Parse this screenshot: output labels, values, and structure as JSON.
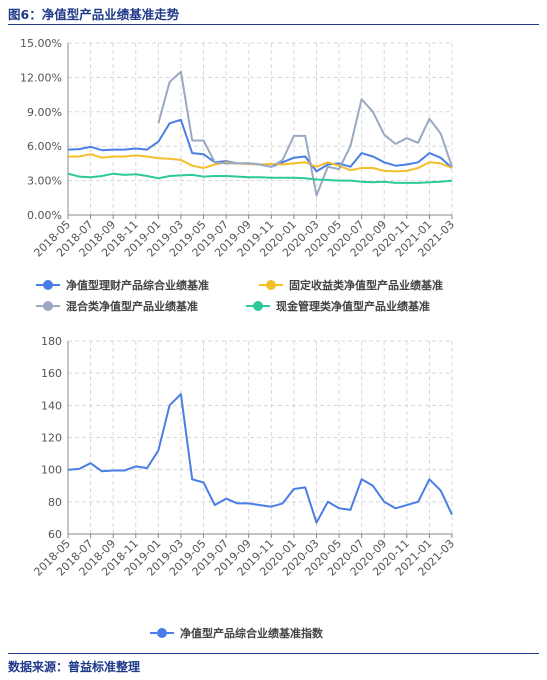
{
  "header": {
    "title": "图6：净值型产品业绩基准走势"
  },
  "footer": {
    "source": "数据来源：普益标准整理"
  },
  "colors": {
    "blue": "#4a7ee6",
    "yellow": "#f5bf2a",
    "gray": "#9aa8c1",
    "green": "#2ec99a",
    "axis": "#888888",
    "grid": "#d8d8d8"
  },
  "chart_data": [
    {
      "type": "line",
      "x": [
        "2018-05",
        "2018-06",
        "2018-07",
        "2018-08",
        "2018-09",
        "2018-10",
        "2018-11",
        "2018-12",
        "2019-01",
        "2019-02",
        "2019-03",
        "2019-04",
        "2019-05",
        "2019-06",
        "2019-07",
        "2019-08",
        "2019-09",
        "2019-10",
        "2019-11",
        "2019-12",
        "2020-01",
        "2020-02",
        "2020-03",
        "2020-04",
        "2020-05",
        "2020-06",
        "2020-07",
        "2020-08",
        "2020-09",
        "2020-10",
        "2020-11",
        "2020-12",
        "2021-01",
        "2021-02",
        "2021-03"
      ],
      "x_tick_labels": [
        "2018-05",
        "2018-07",
        "2018-09",
        "2018-11",
        "2019-01",
        "2019-03",
        "2019-05",
        "2019-07",
        "2019-09",
        "2019-11",
        "2020-01",
        "2020-03",
        "2020-05",
        "2020-07",
        "2020-09",
        "2020-11",
        "2021-01",
        "2021-03"
      ],
      "ylim": [
        0,
        15
      ],
      "y_ticks": [
        "0.00%",
        "3.00%",
        "6.00%",
        "9.00%",
        "12.00%",
        "15.00%"
      ],
      "y_tick_values": [
        0,
        3,
        6,
        9,
        12,
        15
      ],
      "grid": true,
      "legend_position": "bottom",
      "series": [
        {
          "name": "净值型理财产品综合业绩基准",
          "color": "#4a7ee6",
          "values": [
            5.7,
            5.75,
            5.95,
            5.65,
            5.7,
            5.7,
            5.8,
            5.7,
            6.4,
            8.0,
            8.3,
            5.4,
            5.3,
            4.6,
            4.7,
            4.5,
            4.5,
            4.4,
            4.2,
            4.6,
            5.0,
            5.1,
            3.8,
            4.4,
            4.5,
            4.2,
            5.4,
            5.1,
            4.6,
            4.3,
            4.4,
            4.6,
            5.4,
            5.0,
            4.1
          ]
        },
        {
          "name": "固定收益类净值型产品业绩基准",
          "color": "#f5bf2a",
          "values": [
            5.1,
            5.1,
            5.3,
            5.0,
            5.1,
            5.1,
            5.2,
            5.1,
            4.95,
            4.9,
            4.8,
            4.3,
            4.1,
            4.4,
            4.6,
            4.5,
            4.45,
            4.4,
            4.45,
            4.4,
            4.5,
            4.6,
            4.2,
            4.6,
            4.3,
            3.9,
            4.1,
            4.1,
            3.85,
            3.8,
            3.85,
            4.1,
            4.6,
            4.5,
            4.1
          ]
        },
        {
          "name": "混合类净值型产品业绩基准",
          "color": "#9aa8c1",
          "values": [
            null,
            null,
            null,
            null,
            null,
            null,
            null,
            null,
            8.0,
            11.6,
            12.5,
            6.5,
            6.5,
            4.6,
            4.5,
            4.5,
            4.5,
            4.4,
            4.2,
            4.8,
            6.9,
            6.9,
            1.7,
            4.2,
            4.0,
            6.0,
            10.1,
            9.0,
            7.0,
            6.2,
            6.7,
            6.3,
            8.4,
            7.1,
            4.2
          ]
        },
        {
          "name": "现金管理类净值型产品业绩基准",
          "color": "#2ec99a",
          "values": [
            3.6,
            3.35,
            3.3,
            3.4,
            3.6,
            3.5,
            3.55,
            3.4,
            3.2,
            3.4,
            3.45,
            3.5,
            3.35,
            3.4,
            3.4,
            3.35,
            3.3,
            3.3,
            3.25,
            3.25,
            3.25,
            3.2,
            3.1,
            3.05,
            3.0,
            3.0,
            2.9,
            2.85,
            2.9,
            2.8,
            2.8,
            2.8,
            2.85,
            2.9,
            3.0
          ]
        }
      ]
    },
    {
      "type": "line",
      "x": [
        "2018-05",
        "2018-06",
        "2018-07",
        "2018-08",
        "2018-09",
        "2018-10",
        "2018-11",
        "2018-12",
        "2019-01",
        "2019-02",
        "2019-03",
        "2019-04",
        "2019-05",
        "2019-06",
        "2019-07",
        "2019-08",
        "2019-09",
        "2019-10",
        "2019-11",
        "2019-12",
        "2020-01",
        "2020-02",
        "2020-03",
        "2020-04",
        "2020-05",
        "2020-06",
        "2020-07",
        "2020-08",
        "2020-09",
        "2020-10",
        "2020-11",
        "2020-12",
        "2021-01",
        "2021-02",
        "2021-03"
      ],
      "x_tick_labels": [
        "2018-05",
        "2018-07",
        "2018-09",
        "2018-11",
        "2019-01",
        "2019-03",
        "2019-05",
        "2019-07",
        "2019-09",
        "2019-11",
        "2020-01",
        "2020-03",
        "2020-05",
        "2020-07",
        "2020-09",
        "2020-11",
        "2021-01",
        "2021-03"
      ],
      "ylim": [
        60,
        180
      ],
      "y_ticks": [
        "60",
        "80",
        "100",
        "120",
        "140",
        "160",
        "180"
      ],
      "y_tick_values": [
        60,
        80,
        100,
        120,
        140,
        160,
        180
      ],
      "grid": true,
      "legend_position": "bottom",
      "series": [
        {
          "name": "净值型产品综合业绩基准指数",
          "color": "#4a7ee6",
          "values": [
            100,
            100.5,
            104,
            99,
            99.5,
            99.5,
            102,
            101,
            112,
            140,
            147,
            94,
            92,
            78,
            82,
            79,
            79,
            78,
            77,
            79,
            88,
            89,
            67,
            80,
            76,
            75,
            94,
            90,
            80,
            76,
            78,
            80,
            94,
            87,
            72
          ]
        }
      ]
    }
  ]
}
